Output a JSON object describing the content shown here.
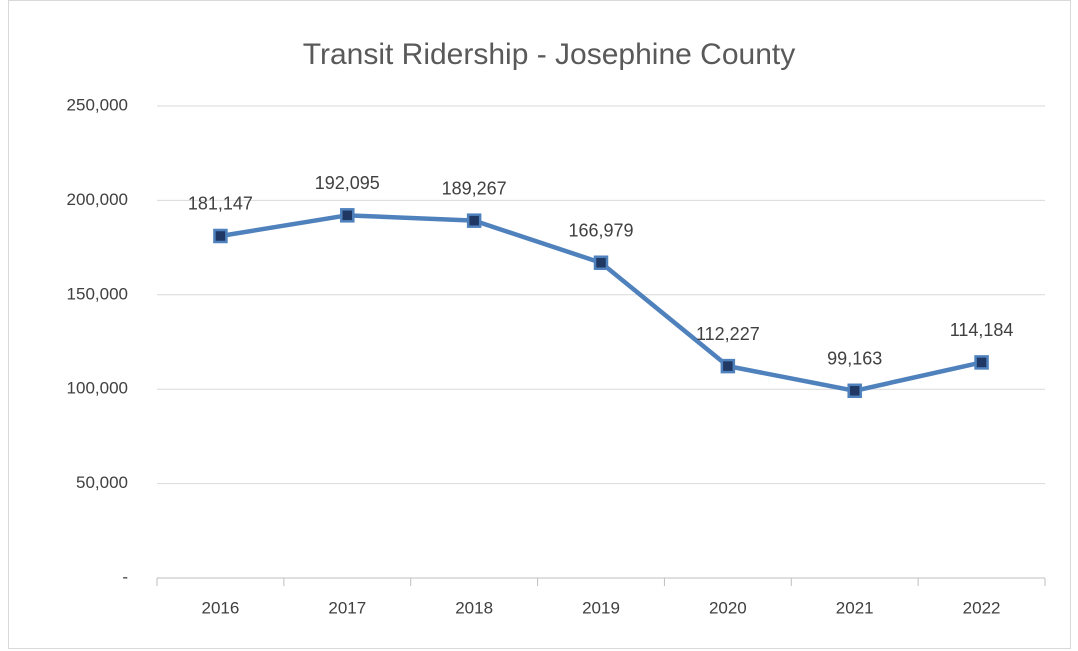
{
  "chart_data": {
    "type": "line",
    "title": "Transit Ridership - Josephine County",
    "categories": [
      "2016",
      "2017",
      "2018",
      "2019",
      "2020",
      "2021",
      "2022"
    ],
    "values": [
      181147,
      192095,
      189267,
      166979,
      112227,
      99163,
      114184
    ],
    "value_labels": [
      "181,147",
      "192,095",
      "189,267",
      "166,979",
      "112,227",
      "99,163",
      "114,184"
    ],
    "color": "#4f81bd",
    "marker_color": "#1f3864",
    "ylim": [
      0,
      250000
    ],
    "yticks": [
      {
        "value": 0,
        "label": "-"
      },
      {
        "value": 50000,
        "label": "50,000"
      },
      {
        "value": 100000,
        "label": "100,000"
      },
      {
        "value": 150000,
        "label": "150,000"
      },
      {
        "value": 200000,
        "label": "200,000"
      },
      {
        "value": 250000,
        "label": "250,000"
      }
    ],
    "grid": true
  }
}
